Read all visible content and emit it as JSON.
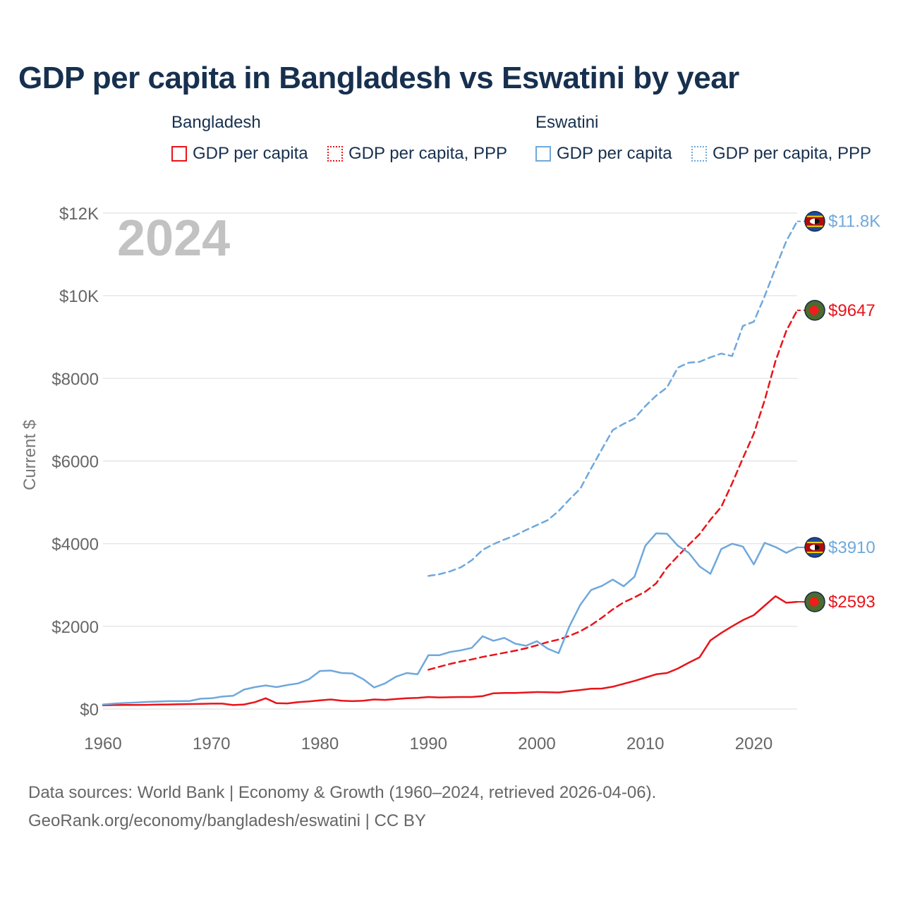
{
  "title": "GDP per capita in Bangladesh vs Eswatini by year",
  "legend": {
    "groups": [
      {
        "country": "Bangladesh",
        "color": "#e8141a",
        "items": [
          {
            "label": "GDP per capita",
            "style": "solid"
          },
          {
            "label": "GDP per capita, PPP",
            "style": "dotted"
          }
        ]
      },
      {
        "country": "Eswatini",
        "color": "#6fa8dc",
        "items": [
          {
            "label": "GDP per capita",
            "style": "solid"
          },
          {
            "label": "GDP per capita, PPP",
            "style": "dotted"
          }
        ]
      }
    ]
  },
  "year_watermark": "2024",
  "source": {
    "line1": "Data sources: World Bank | Economy & Growth (1960–2024, retrieved 2026-04-06).",
    "line2": "GeoRank.org/economy/bangladesh/eswatini | CC BY"
  },
  "chart_data": {
    "type": "line",
    "title": "GDP per capita in Bangladesh vs Eswatini by year",
    "xlabel": "",
    "ylabel": "Current $",
    "xlim": [
      1960,
      2024
    ],
    "ylim": [
      0,
      12000
    ],
    "x_ticks": [
      1960,
      1970,
      1980,
      1990,
      2000,
      2010,
      2020
    ],
    "y_ticks": [
      {
        "value": 0,
        "label": "$0"
      },
      {
        "value": 2000,
        "label": "$2000"
      },
      {
        "value": 4000,
        "label": "$4000"
      },
      {
        "value": 6000,
        "label": "$6000"
      },
      {
        "value": 8000,
        "label": "$8000"
      },
      {
        "value": 10000,
        "label": "$10K"
      },
      {
        "value": 12000,
        "label": "$12K"
      }
    ],
    "grid": true,
    "series": [
      {
        "name": "Bangladesh GDP per capita",
        "country": "Bangladesh",
        "dash": "solid",
        "color": "#e8141a",
        "end_label": "$2593",
        "marker_icon": "bangladesh-flag-icon",
        "x": [
          1960,
          1961,
          1962,
          1963,
          1964,
          1965,
          1966,
          1967,
          1968,
          1969,
          1970,
          1971,
          1972,
          1973,
          1974,
          1975,
          1976,
          1977,
          1978,
          1979,
          1980,
          1981,
          1982,
          1983,
          1984,
          1985,
          1986,
          1987,
          1988,
          1989,
          1990,
          1991,
          1992,
          1993,
          1994,
          1995,
          1996,
          1997,
          1998,
          1999,
          2000,
          2001,
          2002,
          2003,
          2004,
          2005,
          2006,
          2007,
          2008,
          2009,
          2010,
          2011,
          2012,
          2013,
          2014,
          2015,
          2016,
          2017,
          2018,
          2019,
          2020,
          2021,
          2022,
          2023,
          2024
        ],
        "values": [
          90,
          95,
          98,
          98,
          100,
          105,
          110,
          115,
          120,
          125,
          130,
          130,
          95,
          110,
          165,
          260,
          140,
          135,
          165,
          185,
          210,
          230,
          200,
          190,
          200,
          230,
          220,
          240,
          260,
          270,
          290,
          280,
          285,
          290,
          290,
          310,
          380,
          390,
          390,
          400,
          410,
          405,
          400,
          430,
          460,
          490,
          495,
          540,
          610,
          680,
          760,
          840,
          870,
          980,
          1120,
          1250,
          1660,
          1840,
          2000,
          2150,
          2270,
          2500,
          2730,
          2570,
          2593
        ]
      },
      {
        "name": "Bangladesh GDP per capita, PPP",
        "country": "Bangladesh",
        "dash": "dashed",
        "color": "#e8141a",
        "end_label": "$9647",
        "marker_icon": "bangladesh-flag-icon",
        "x": [
          1990,
          1991,
          1992,
          1993,
          1994,
          1995,
          1996,
          1997,
          1998,
          1999,
          2000,
          2001,
          2002,
          2003,
          2004,
          2005,
          2006,
          2007,
          2008,
          2009,
          2010,
          2011,
          2012,
          2013,
          2014,
          2015,
          2016,
          2017,
          2018,
          2019,
          2020,
          2021,
          2022,
          2023,
          2024
        ],
        "values": [
          950,
          1020,
          1090,
          1150,
          1200,
          1260,
          1310,
          1360,
          1410,
          1470,
          1540,
          1620,
          1680,
          1770,
          1880,
          2030,
          2210,
          2410,
          2580,
          2700,
          2840,
          3040,
          3420,
          3700,
          3970,
          4230,
          4580,
          4890,
          5460,
          6070,
          6660,
          7470,
          8420,
          9150,
          9647
        ]
      },
      {
        "name": "Eswatini GDP per capita",
        "country": "Eswatini",
        "dash": "solid",
        "color": "#6fa8dc",
        "end_label": "$3910",
        "marker_icon": "eswatini-flag-icon",
        "x": [
          1960,
          1961,
          1962,
          1963,
          1964,
          1965,
          1966,
          1967,
          1968,
          1969,
          1970,
          1971,
          1972,
          1973,
          1974,
          1975,
          1976,
          1977,
          1978,
          1979,
          1980,
          1981,
          1982,
          1983,
          1984,
          1985,
          1986,
          1987,
          1988,
          1989,
          1990,
          1991,
          1992,
          1993,
          1994,
          1995,
          1996,
          1997,
          1998,
          1999,
          2000,
          2001,
          2002,
          2003,
          2004,
          2005,
          2006,
          2007,
          2008,
          2009,
          2010,
          2011,
          2012,
          2013,
          2014,
          2015,
          2016,
          2017,
          2018,
          2019,
          2020,
          2021,
          2022,
          2023,
          2024
        ],
        "values": [
          110,
          130,
          145,
          155,
          170,
          180,
          190,
          190,
          195,
          250,
          260,
          300,
          320,
          470,
          530,
          570,
          530,
          580,
          620,
          720,
          920,
          930,
          870,
          860,
          720,
          520,
          620,
          780,
          870,
          840,
          1300,
          1300,
          1380,
          1420,
          1480,
          1760,
          1650,
          1720,
          1580,
          1530,
          1640,
          1460,
          1350,
          2000,
          2520,
          2880,
          2980,
          3130,
          2970,
          3200,
          3950,
          4250,
          4240,
          3950,
          3780,
          3450,
          3270,
          3870,
          4000,
          3930,
          3500,
          4020,
          3920,
          3780,
          3910
        ]
      },
      {
        "name": "Eswatini GDP per capita, PPP",
        "country": "Eswatini",
        "dash": "dashed",
        "color": "#6fa8dc",
        "end_label": "$11.8K",
        "marker_icon": "eswatini-flag-icon",
        "x": [
          1990,
          1991,
          1992,
          1993,
          1994,
          1995,
          1996,
          1997,
          1998,
          1999,
          2000,
          2001,
          2002,
          2003,
          2004,
          2005,
          2006,
          2007,
          2008,
          2009,
          2010,
          2011,
          2012,
          2013,
          2014,
          2015,
          2016,
          2017,
          2018,
          2019,
          2020,
          2021,
          2022,
          2023,
          2024
        ],
        "values": [
          3220,
          3260,
          3330,
          3430,
          3600,
          3850,
          3990,
          4100,
          4200,
          4330,
          4450,
          4570,
          4790,
          5070,
          5330,
          5820,
          6290,
          6750,
          6900,
          7030,
          7330,
          7580,
          7780,
          8260,
          8380,
          8400,
          8510,
          8600,
          8540,
          9270,
          9370,
          9990,
          10670,
          11320,
          11800
        ]
      }
    ]
  }
}
